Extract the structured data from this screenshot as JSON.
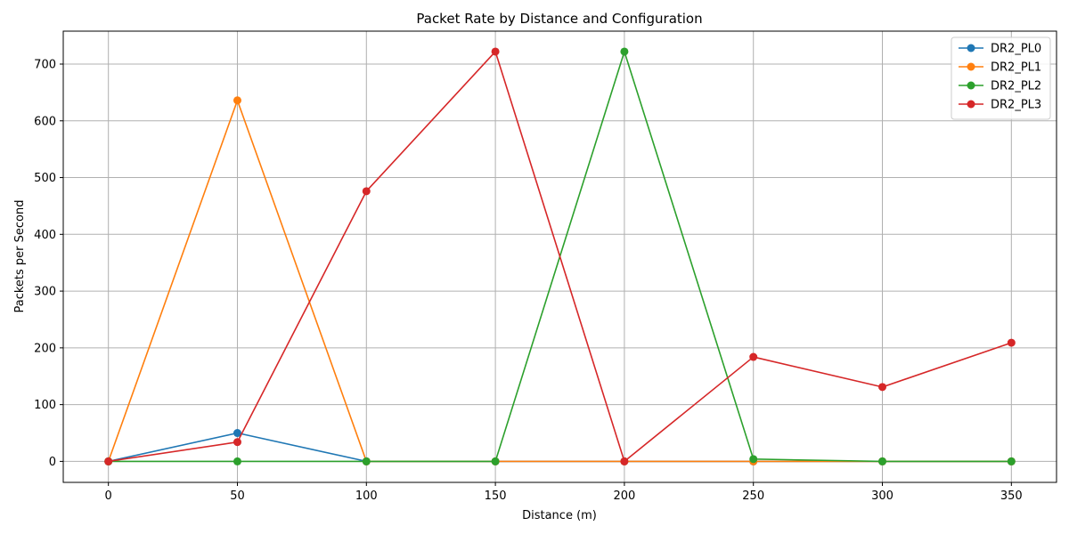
{
  "chart_data": {
    "type": "line",
    "title": "Packet Rate by Distance and Configuration",
    "xlabel": "Distance (m)",
    "ylabel": "Packets per Second",
    "x": [
      0,
      50,
      100,
      150,
      200,
      250,
      300,
      350
    ],
    "xlim": [
      -17.5,
      367.5
    ],
    "ylim": [
      -37,
      758
    ],
    "xticks": [
      0,
      50,
      100,
      150,
      200,
      250,
      300,
      350
    ],
    "yticks": [
      0,
      100,
      200,
      300,
      400,
      500,
      600,
      700
    ],
    "grid": true,
    "legend_position": "top-right",
    "series": [
      {
        "name": "DR2_PL0",
        "color": "#1f77b4",
        "values": [
          0,
          50,
          0,
          0,
          0,
          0,
          0,
          0
        ]
      },
      {
        "name": "DR2_PL1",
        "color": "#ff7f0e",
        "values": [
          0,
          636,
          0,
          0,
          0,
          0,
          0,
          0
        ]
      },
      {
        "name": "DR2_PL2",
        "color": "#2ca02c",
        "values": [
          0,
          0,
          0,
          0,
          722,
          4,
          0,
          0
        ]
      },
      {
        "name": "DR2_PL3",
        "color": "#d62728",
        "values": [
          0,
          34,
          476,
          722,
          0,
          184,
          131,
          209
        ]
      }
    ]
  }
}
